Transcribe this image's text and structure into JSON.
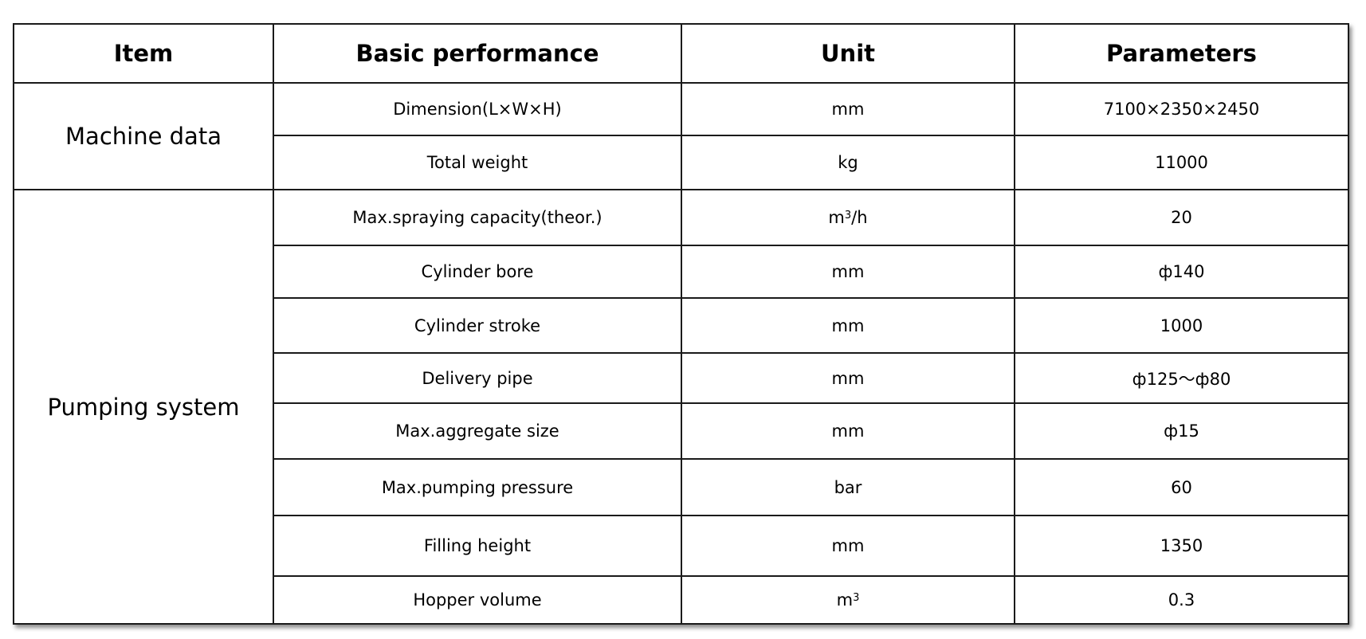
{
  "headers": [
    "Item",
    "Basic performance",
    "Unit",
    "Parameters"
  ],
  "groups": [
    {
      "name": "Machine data",
      "rows": [
        {
          "performance": "Dimension(L×W×H)",
          "unit": "mm",
          "parameter": "7100×2350×2450"
        },
        {
          "performance": "Total weight",
          "unit": "kg",
          "parameter": "11000"
        }
      ]
    },
    {
      "name": "Pumping system",
      "rows": [
        {
          "performance": "Max.spraying capacity(theor.)",
          "unit": "m³/h",
          "parameter": "20"
        },
        {
          "performance": "Cylinder bore",
          "unit": "mm",
          "parameter": "ф140"
        },
        {
          "performance": "Cylinder stroke",
          "unit": "mm",
          "parameter": "1000"
        },
        {
          "performance": "Delivery pipe",
          "unit": "mm",
          "parameter": "ф125～ф80"
        },
        {
          "performance": "Max.aggregate size",
          "unit": "mm",
          "parameter": "ф15"
        },
        {
          "performance": "Max.pumping pressure",
          "unit": "bar",
          "parameter": "60"
        },
        {
          "performance": "Filling height",
          "unit": "mm",
          "parameter": "1350"
        },
        {
          "performance": "Hopper volume",
          "unit": "m³",
          "parameter": "0.3"
        }
      ]
    }
  ]
}
